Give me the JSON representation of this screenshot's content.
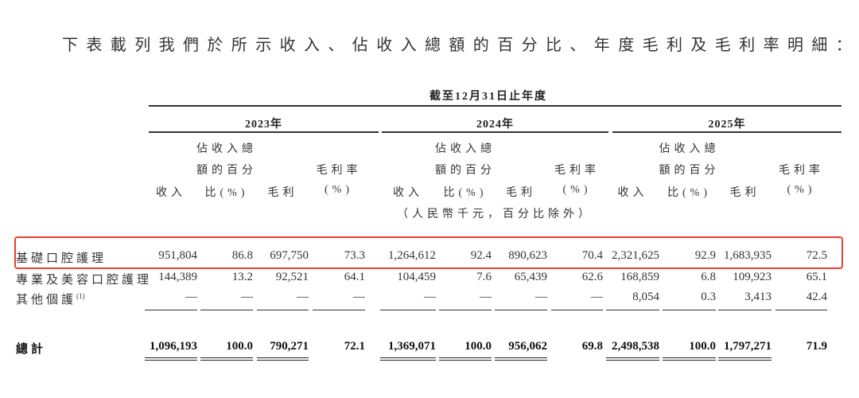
{
  "intro": "下表載列我們於所示收入、佔收入總額的百分比、年度毛利及毛利率明細：",
  "period_header": "截至12月31日止年度",
  "years": [
    "2023年",
    "2024年",
    "2025年"
  ],
  "column_headers": {
    "revenue": "收入",
    "share_line1": "佔收入總",
    "share_line2": "額的百分",
    "share_line3": "比(%)",
    "gross_profit": "毛利",
    "margin_line1": "毛利率",
    "margin_line2": "(%)"
  },
  "unit_note": "（人民幣千元，百分比除外）",
  "highlight_color": "#e8412c",
  "rows": [
    {
      "label": "基礎口腔護理",
      "footnote": "",
      "values": [
        "951,804",
        "86.8",
        "697,750",
        "73.3",
        "1,264,612",
        "92.4",
        "890,623",
        "70.4",
        "2,321,625",
        "92.9",
        "1,683,935",
        "72.5"
      ],
      "highlighted": true
    },
    {
      "label": "專業及美容口腔護理",
      "footnote": "",
      "values": [
        "144,389",
        "13.2",
        "92,521",
        "64.1",
        "104,459",
        "7.6",
        "65,439",
        "62.6",
        "168,859",
        "6.8",
        "109,923",
        "65.1"
      ],
      "highlighted": false
    },
    {
      "label": "其他個護",
      "footnote": "(1)",
      "values": [
        "—",
        "—",
        "—",
        "—",
        "—",
        "—",
        "—",
        "—",
        "8,054",
        "0.3",
        "3,413",
        "42.4"
      ],
      "highlighted": false
    }
  ],
  "total": {
    "label": "總計",
    "values": [
      "1,096,193",
      "100.0",
      "790,271",
      "72.1",
      "1,369,071",
      "100.0",
      "956,062",
      "69.8",
      "2,498,538",
      "100.0",
      "1,797,271",
      "71.9"
    ]
  }
}
